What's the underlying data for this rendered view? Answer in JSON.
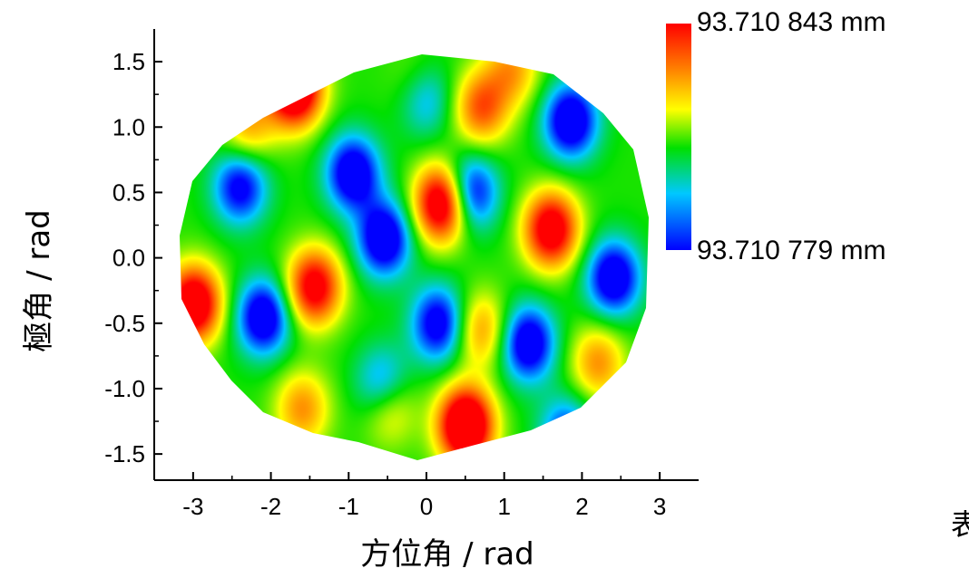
{
  "chart_data": {
    "type": "heatmap",
    "title": "",
    "xlabel": "方位角 / rad",
    "ylabel": "極角 / rad",
    "xlim": [
      -3.5,
      3.5
    ],
    "ylim": [
      -1.7,
      1.75
    ],
    "x_ticks": [
      -3,
      -2,
      -1,
      0,
      1,
      2,
      3
    ],
    "x_tick_labels": [
      "-3",
      "-2",
      "-1",
      "0",
      "1",
      "2",
      "3"
    ],
    "y_ticks": [
      1.5,
      1.0,
      0.5,
      0.0,
      -0.5,
      -1.0,
      -1.5
    ],
    "y_tick_labels": [
      "1.5",
      "1.0",
      "0.5",
      "0.0",
      "-0.5",
      "-1.0",
      "-1.5"
    ],
    "colorbar": {
      "max_label": "93.710 843 mm",
      "min_label": "93.710 779 mm",
      "max_value": 93.710843,
      "min_value": 93.710779,
      "colormap": [
        "#0000ff",
        "#00c8ff",
        "#00e000",
        "#ffff00",
        "#ff8000",
        "#ff0000"
      ]
    },
    "peaks": [
      {
        "x": -1.7,
        "y": 1.3,
        "level": 0.95
      },
      {
        "x": 0.2,
        "y": 0.42,
        "level": 0.92
      },
      {
        "x": 1.6,
        "y": 0.22,
        "level": 0.85
      },
      {
        "x": -1.45,
        "y": -0.22,
        "level": 0.82
      },
      {
        "x": -3.0,
        "y": -0.35,
        "level": 0.9
      },
      {
        "x": 0.5,
        "y": -1.28,
        "level": 0.98
      },
      {
        "x": 0.7,
        "y": 1.15,
        "level": 0.68
      },
      {
        "x": -0.5,
        "y": -1.1,
        "level": 0.72
      },
      {
        "x": 1.1,
        "y": 1.45,
        "level": 0.6
      },
      {
        "x": -2.3,
        "y": 1.0,
        "level": 0.6
      },
      {
        "x": 2.2,
        "y": -0.8,
        "level": 0.62
      },
      {
        "x": 0.7,
        "y": -0.55,
        "level": 0.62
      },
      {
        "x": -0.1,
        "y": 1.3,
        "level": 0.65
      },
      {
        "x": -1.6,
        "y": -1.15,
        "level": 0.62
      }
    ],
    "troughs": [
      {
        "x": -0.05,
        "y": 1.25,
        "level": 0.05
      },
      {
        "x": 1.85,
        "y": 1.05,
        "level": 0.04
      },
      {
        "x": -0.95,
        "y": 0.65,
        "level": 0.05
      },
      {
        "x": 0.55,
        "y": 0.5,
        "level": 0.06
      },
      {
        "x": -2.4,
        "y": 0.55,
        "level": 0.1
      },
      {
        "x": -0.55,
        "y": 0.15,
        "level": 0.04
      },
      {
        "x": 2.4,
        "y": -0.15,
        "level": 0.05
      },
      {
        "x": -2.1,
        "y": -0.45,
        "level": 0.05
      },
      {
        "x": 0.15,
        "y": -0.5,
        "level": 0.08
      },
      {
        "x": 1.3,
        "y": -0.65,
        "level": 0.05
      },
      {
        "x": -0.55,
        "y": -1.0,
        "level": 0.04
      },
      {
        "x": 1.8,
        "y": -1.35,
        "level": 0.15
      }
    ]
  },
  "corner_text": "表"
}
